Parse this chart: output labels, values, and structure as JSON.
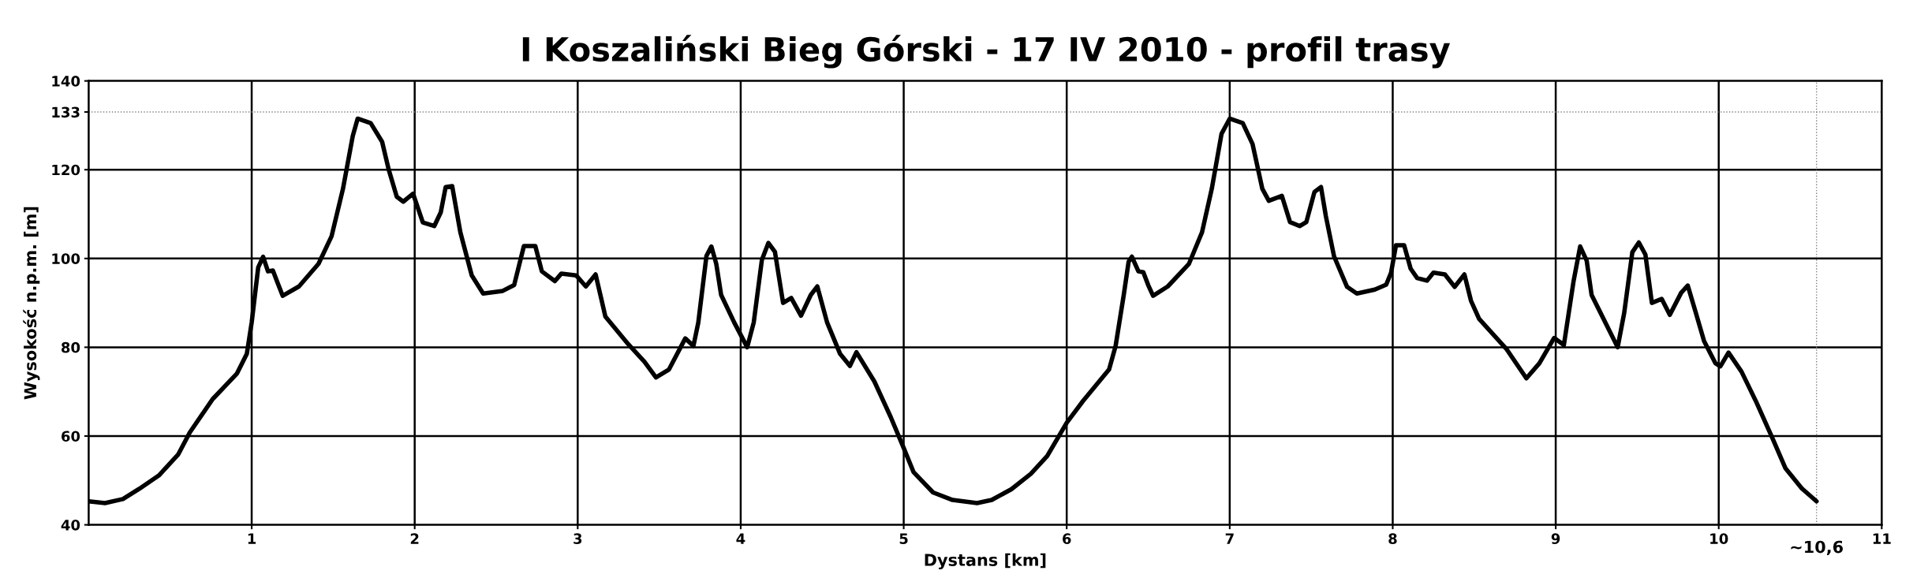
{
  "chart_data": {
    "type": "line",
    "title": "I Koszaliński Bieg Górski - 17 IV 2010 - profil trasy",
    "xlabel": "Dystans [km]",
    "ylabel": "Wysokość n.p.m. [m]",
    "xlim": [
      0,
      11
    ],
    "ylim": [
      40,
      140
    ],
    "xticks": [
      1,
      2,
      3,
      4,
      5,
      6,
      7,
      8,
      9,
      10,
      11
    ],
    "yticks": [
      40,
      60,
      80,
      100,
      120,
      133,
      140
    ],
    "grid": true,
    "marker": "none",
    "line_style": "solid",
    "ref_lines": [
      {
        "axis": "y",
        "value": 133,
        "label": null,
        "color": "#808080",
        "line_style": "dotted"
      },
      {
        "axis": "x",
        "value": 10.6,
        "label": "~10,6",
        "color": "#808080",
        "line_style": "dotted"
      }
    ],
    "series": [
      {
        "color": "#000000",
        "x": [
          0,
          0.1,
          0.21,
          0.31,
          0.43,
          0.55,
          0.62,
          0.76,
          0.91,
          0.97,
          1.0,
          1.04,
          1.07,
          1.1,
          1.13,
          1.16,
          1.19,
          1.29,
          1.41,
          1.49,
          1.56,
          1.62,
          1.65,
          1.73,
          1.8,
          1.84,
          1.89,
          1.93,
          1.99,
          2.05,
          2.12,
          2.16,
          2.19,
          2.23,
          2.28,
          2.35,
          2.42,
          2.54,
          2.61,
          2.67,
          2.74,
          2.78,
          2.86,
          2.9,
          2.99,
          3.05,
          3.11,
          3.17,
          3.31,
          3.41,
          3.48,
          3.56,
          3.66,
          3.71,
          3.74,
          3.79,
          3.82,
          3.85,
          3.88,
          3.96,
          4.04,
          4.08,
          4.13,
          4.17,
          4.21,
          4.26,
          4.31,
          4.37,
          4.43,
          4.47,
          4.53,
          4.61,
          4.67,
          4.71,
          4.82,
          4.92,
          5.0,
          5.06,
          5.18,
          5.3,
          5.45,
          5.54,
          5.66,
          5.78,
          5.88,
          6.0,
          6.1,
          6.19,
          6.26,
          6.3,
          6.35,
          6.38,
          6.4,
          6.44,
          6.47,
          6.5,
          6.53,
          6.62,
          6.75,
          6.83,
          6.89,
          6.95,
          7.0,
          7.08,
          7.14,
          7.2,
          7.24,
          7.32,
          7.37,
          7.43,
          7.47,
          7.52,
          7.56,
          7.59,
          7.64,
          7.72,
          7.78,
          7.89,
          7.96,
          7.99,
          8.02,
          8.07,
          8.11,
          8.15,
          8.21,
          8.25,
          8.32,
          8.38,
          8.44,
          8.48,
          8.53,
          8.7,
          8.82,
          8.9,
          8.99,
          9.05,
          9.11,
          9.15,
          9.19,
          9.22,
          9.38,
          9.42,
          9.47,
          9.51,
          9.55,
          9.59,
          9.65,
          9.7,
          9.77,
          9.81,
          9.86,
          9.91,
          9.98,
          10.01,
          10.06,
          10.14,
          10.23,
          10.33,
          10.41,
          10.51,
          10.6
        ],
        "values": [
          45.3,
          44.9,
          45.8,
          48.1,
          51.1,
          55.9,
          60.8,
          68.3,
          74.1,
          78.5,
          85.6,
          98.0,
          100.4,
          97.1,
          97.3,
          94.4,
          91.6,
          93.7,
          98.8,
          105.0,
          115.7,
          127.6,
          131.5,
          130.5,
          126.3,
          120.1,
          113.9,
          112.8,
          114.6,
          108.1,
          107.3,
          110.4,
          116.1,
          116.3,
          105.9,
          96.2,
          92.1,
          92.7,
          94.0,
          102.8,
          102.8,
          97.1,
          94.9,
          96.6,
          96.2,
          93.7,
          96.4,
          86.9,
          80.7,
          76.7,
          73.2,
          75.0,
          82.0,
          80.3,
          85.6,
          100.6,
          102.7,
          98.8,
          91.8,
          85.6,
          80.0,
          85.6,
          99.7,
          103.5,
          101.5,
          90.0,
          91.1,
          87.1,
          91.8,
          93.7,
          85.6,
          78.5,
          75.8,
          78.9,
          72.3,
          64.3,
          57.3,
          51.9,
          47.3,
          45.6,
          44.9,
          45.6,
          48.0,
          51.5,
          55.5,
          63.0,
          67.9,
          71.9,
          75.0,
          80.3,
          91.8,
          99.3,
          100.4,
          97.1,
          96.9,
          94.0,
          91.6,
          93.7,
          98.8,
          105.9,
          115.7,
          128.1,
          131.5,
          130.5,
          125.8,
          115.7,
          113.0,
          114.1,
          108.2,
          107.3,
          108.2,
          115.0,
          116.1,
          109.5,
          100.5,
          93.6,
          92.1,
          93.0,
          94.1,
          96.8,
          103.0,
          103.0,
          97.7,
          95.6,
          95.0,
          96.8,
          96.4,
          93.6,
          96.4,
          90.5,
          86.4,
          79.5,
          73.0,
          76.4,
          82.1,
          80.5,
          95.0,
          102.7,
          99.5,
          91.8,
          80.0,
          87.7,
          101.4,
          103.6,
          100.9,
          90.0,
          90.9,
          87.3,
          92.3,
          93.9,
          87.7,
          81.4,
          76.4,
          75.7,
          78.8,
          74.5,
          67.7,
          59.5,
          52.7,
          48.2,
          45.3
        ]
      }
    ]
  }
}
